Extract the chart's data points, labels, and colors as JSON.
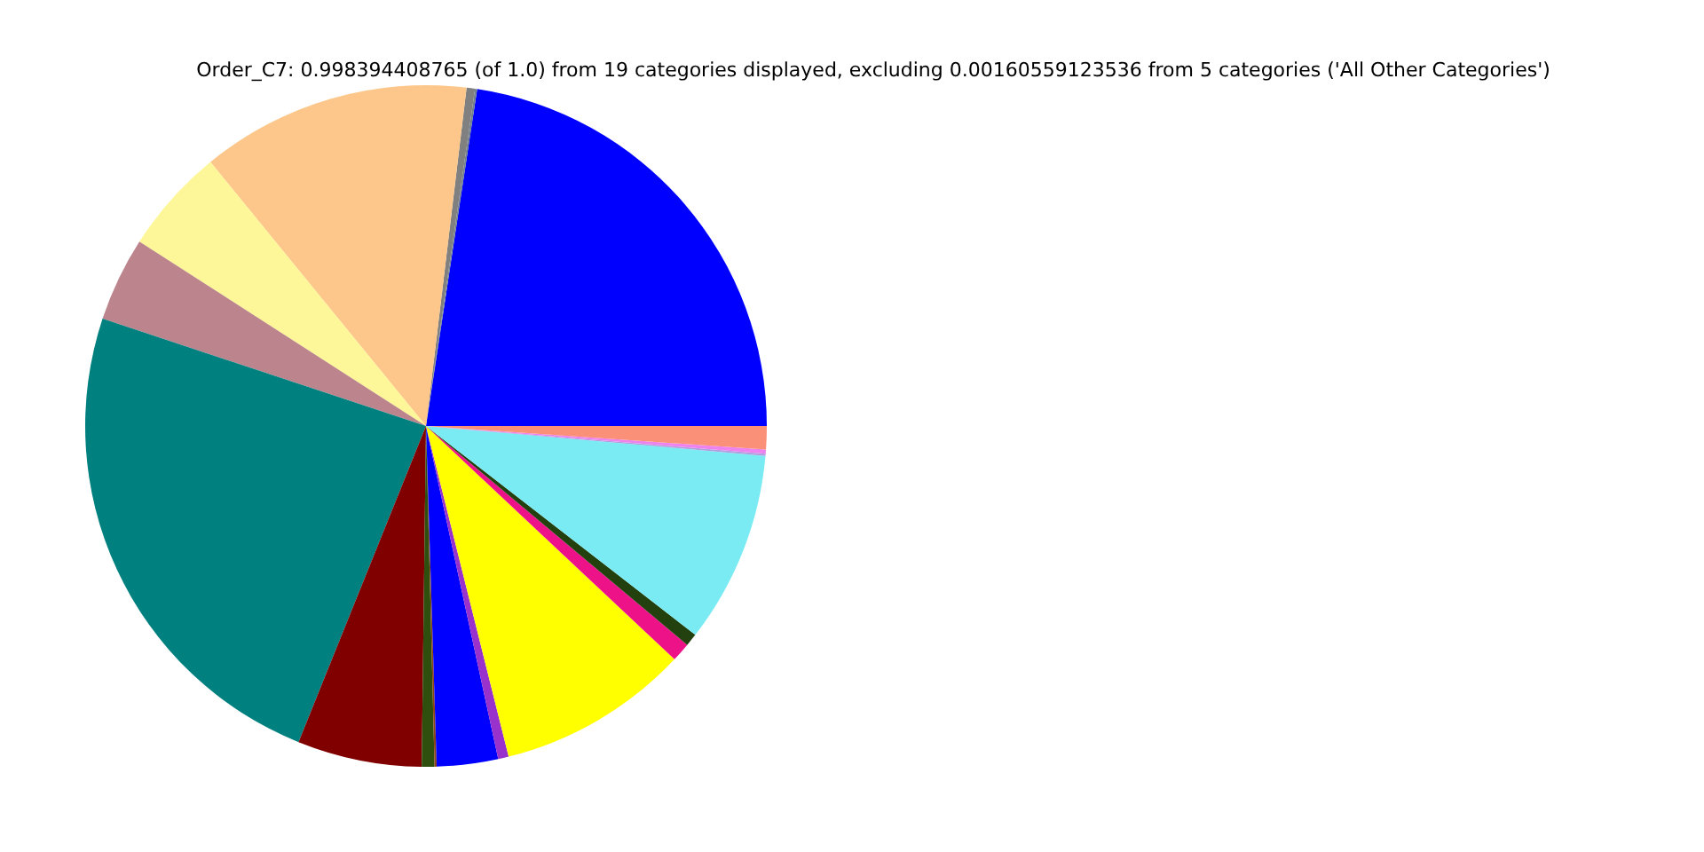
{
  "chart_data": {
    "type": "pie",
    "title": "Order_C7: 0.998394408765 (of 1.0) from 19 categories displayed, excluding 0.00160559123536 from 5 categories ('All Other Categories')",
    "categories": [
      null,
      null,
      null,
      null,
      null,
      null,
      null,
      null,
      null,
      null,
      null,
      null,
      null,
      null,
      null,
      null,
      null,
      null,
      null
    ],
    "values": [
      22.6,
      0.1,
      0.4,
      12.8,
      5.0,
      4.0,
      24.0,
      5.9,
      0.6,
      0.1,
      2.9,
      0.5,
      9.1,
      0.9,
      0.6,
      9.1,
      0.1,
      0.2,
      1.1
    ],
    "colors": [
      "#0000ff",
      "#708090",
      "#808080",
      "#fdc78b",
      "#fef799",
      "#bc848c",
      "#00807f",
      "#800000",
      "#2f4f0f",
      "#8b4513",
      "#0000ff",
      "#9932cc",
      "#ffff00",
      "#ee1289",
      "#23400f",
      "#7aebf3",
      "#b0a0e0",
      "#ee82ee",
      "#fa9078"
    ],
    "legend": false
  }
}
